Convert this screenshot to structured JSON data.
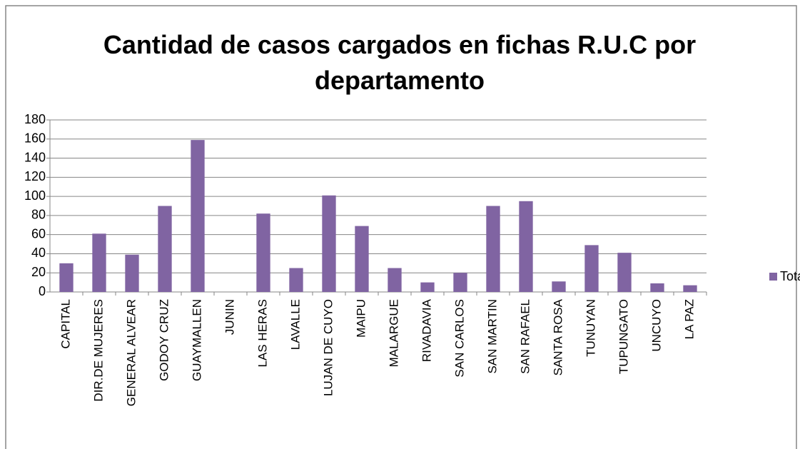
{
  "chart_data": {
    "type": "bar",
    "title": "Cantidad de casos cargados en fichas R.U.C por departamento",
    "categories": [
      "CAPITAL",
      "DIR.DE MUJERES",
      "GENERAL ALVEAR",
      "GODOY CRUZ",
      "GUAYMALLEN",
      "JUNIN",
      "LAS HERAS",
      "LAVALLE",
      "LUJAN DE CUYO",
      "MAIPU",
      "MALARGUE",
      "RIVADAVIA",
      "SAN CARLOS",
      "SAN MARTIN",
      "SAN RAFAEL",
      "SANTA ROSA",
      "TUNUYAN",
      "TUPUNGATO",
      "UNCUYO",
      "LA PAZ"
    ],
    "series": [
      {
        "name": "Total",
        "color": "#8064a2",
        "values": [
          30,
          61,
          39,
          90,
          159,
          0,
          82,
          25,
          101,
          69,
          25,
          10,
          20,
          90,
          95,
          11,
          49,
          41,
          9,
          7
        ]
      }
    ],
    "ylim": [
      0,
      180
    ],
    "yticks": [
      0,
      20,
      40,
      60,
      80,
      100,
      120,
      140,
      160,
      180
    ],
    "grid": true,
    "legend": "right"
  }
}
